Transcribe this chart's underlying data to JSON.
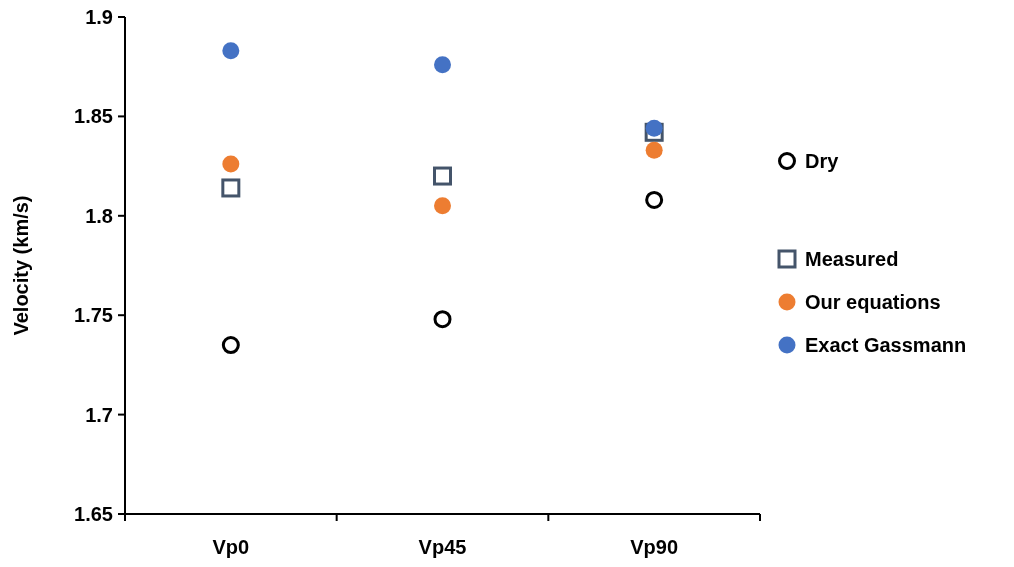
{
  "chart_data": {
    "type": "scatter",
    "ylabel": "Velocity (km/s)",
    "categories": [
      "Vp0",
      "Vp45",
      "Vp90"
    ],
    "ylim": [
      1.65,
      1.9
    ],
    "yticks": [
      1.65,
      1.7,
      1.75,
      1.8,
      1.85,
      1.9
    ],
    "grid": false,
    "legend": "right",
    "series": [
      {
        "name": "Dry",
        "color": "#000000",
        "marker": "circle",
        "values": [
          1.735,
          1.748,
          1.808
        ]
      },
      {
        "name": "Measured",
        "color": "#44546a",
        "marker": "square",
        "values": [
          1.814,
          1.82,
          1.842
        ]
      },
      {
        "name": "Our equations",
        "color": "#ed7d31",
        "marker": "circle",
        "values": [
          1.826,
          1.805,
          1.833
        ]
      },
      {
        "name": "Exact Gassmann",
        "color": "#4472c4",
        "marker": "circle",
        "values": [
          1.883,
          1.876,
          1.844
        ]
      }
    ]
  }
}
